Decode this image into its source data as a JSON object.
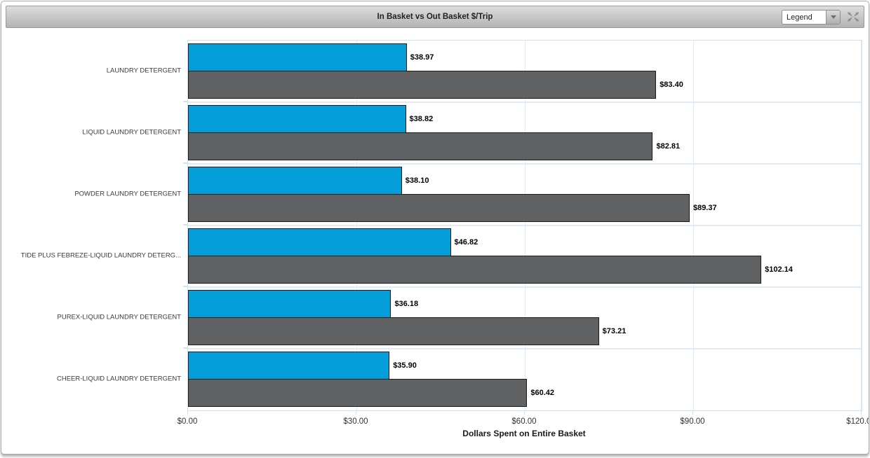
{
  "window": {
    "title": "In Basket vs Out Basket $/Trip"
  },
  "toolbar": {
    "legend_selector_value": "Legend"
  },
  "chart_data": {
    "type": "bar",
    "orientation": "horizontal",
    "title": "In Basket vs Out Basket $/Trip",
    "xlabel": "Dollars Spent on Entire Basket",
    "xlim": [
      0,
      120
    ],
    "xticks": [
      0,
      30,
      60,
      90,
      120
    ],
    "xtick_labels": [
      "$0.00",
      "$30.00",
      "$60.00",
      "$90.00",
      "$120.00"
    ],
    "grid": "vertical",
    "legend_position": "collapsed-dropdown",
    "categories": [
      "LAUNDRY DETERGENT",
      "LIQUID LAUNDRY DETERGENT",
      "POWDER LAUNDRY DETERGENT",
      "TIDE PLUS FEBREZE-LIQUID LAUNDRY DETERG...",
      "PUREX-LIQUID LAUNDRY DETERGENT",
      "CHEER-LIQUID LAUNDRY DETERGENT"
    ],
    "series": [
      {
        "name": "In Basket",
        "color": "#049edb",
        "values": [
          38.97,
          38.82,
          38.1,
          46.82,
          36.18,
          35.9
        ],
        "labels": [
          "$38.97",
          "$38.82",
          "$38.10",
          "$46.82",
          "$36.18",
          "$35.90"
        ]
      },
      {
        "name": "Out Basket",
        "color": "#5f6163",
        "values": [
          83.4,
          82.81,
          89.37,
          102.14,
          73.21,
          60.42
        ],
        "labels": [
          "$83.40",
          "$82.81",
          "$89.37",
          "$102.14",
          "$73.21",
          "$60.42"
        ]
      }
    ]
  },
  "colors": {
    "bar_blue": "#049edb",
    "bar_gray": "#5f6163",
    "bar_border": "#1b1b1b",
    "grid_line": "#dfebf8",
    "plot_border": "#cfe1f2",
    "header_gradient_top": "#dddddd",
    "header_gradient_bottom": "#b3b3b3"
  }
}
